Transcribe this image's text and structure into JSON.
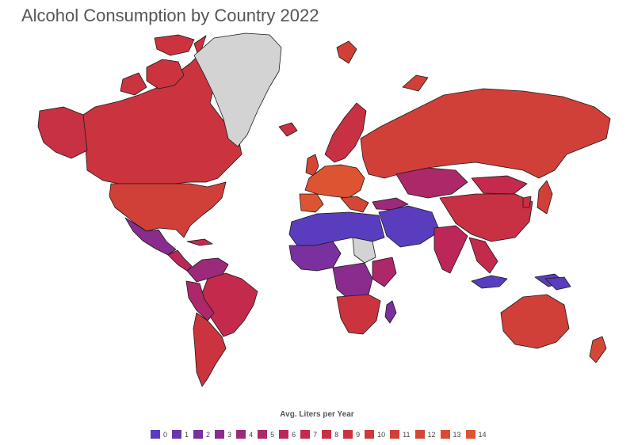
{
  "title": "Alcohol Consumption by Country 2022",
  "legend": {
    "title": "Avg. Liters per Year",
    "items": [
      {
        "label": "0",
        "color": "#5a3dbe"
      },
      {
        "label": "1",
        "color": "#6a36ae"
      },
      {
        "label": "2",
        "color": "#7a309e"
      },
      {
        "label": "3",
        "color": "#8a2c8e"
      },
      {
        "label": "4",
        "color": "#9c2a7a"
      },
      {
        "label": "5",
        "color": "#ac2868"
      },
      {
        "label": "6",
        "color": "#bc2658"
      },
      {
        "label": "7",
        "color": "#c42a4c"
      },
      {
        "label": "8",
        "color": "#c83044"
      },
      {
        "label": "9",
        "color": "#cb343e"
      },
      {
        "label": "10",
        "color": "#ce3a3a"
      },
      {
        "label": "11",
        "color": "#d14038"
      },
      {
        "label": "12",
        "color": "#d44636"
      },
      {
        "label": "13",
        "color": "#d84c34"
      },
      {
        "label": "14",
        "color": "#dc5432"
      }
    ]
  },
  "no_data_color": "#d3d3d3"
}
